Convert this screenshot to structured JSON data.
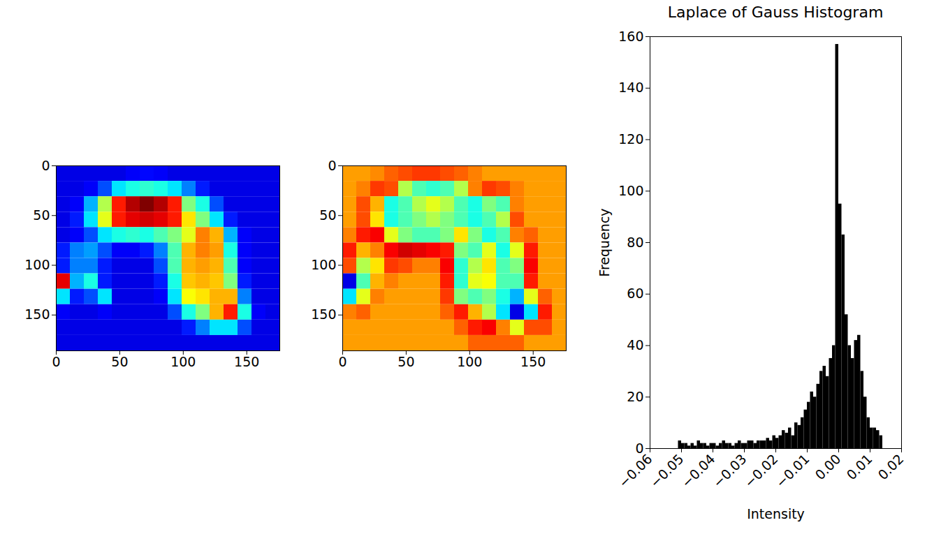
{
  "chart_data": [
    {
      "type": "heatmap",
      "color": "jet",
      "color_domain": [
        0,
        1
      ],
      "x_edges": [
        0,
        11,
        22,
        33,
        44,
        55,
        66,
        77,
        88,
        99,
        110,
        121,
        132,
        143,
        154,
        165,
        176
      ],
      "y_edges": [
        0,
        15.5,
        31,
        46.5,
        62,
        77.5,
        93,
        108.5,
        124,
        139.5,
        155,
        170.5,
        186
      ],
      "cells": [
        [
          0.1,
          0.1,
          0.1,
          0.1,
          0.1,
          0.12,
          0.13,
          0.12,
          0.1,
          0.1,
          0.1,
          0.1,
          0.1,
          0.1,
          0.1,
          0.1
        ],
        [
          0.1,
          0.1,
          0.12,
          0.2,
          0.35,
          0.4,
          0.42,
          0.4,
          0.35,
          0.25,
          0.15,
          0.1,
          0.1,
          0.1,
          0.1,
          0.1
        ],
        [
          0.1,
          0.12,
          0.3,
          0.55,
          0.85,
          0.95,
          1.0,
          0.95,
          0.85,
          0.5,
          0.4,
          0.2,
          0.1,
          0.1,
          0.1,
          0.1
        ],
        [
          0.1,
          0.15,
          0.35,
          0.6,
          0.85,
          0.9,
          0.92,
          0.9,
          0.85,
          0.65,
          0.5,
          0.35,
          0.15,
          0.1,
          0.1,
          0.1
        ],
        [
          0.1,
          0.12,
          0.2,
          0.35,
          0.4,
          0.42,
          0.4,
          0.45,
          0.5,
          0.6,
          0.75,
          0.7,
          0.3,
          0.12,
          0.1,
          0.1
        ],
        [
          0.15,
          0.25,
          0.28,
          0.2,
          0.12,
          0.12,
          0.15,
          0.25,
          0.45,
          0.7,
          0.75,
          0.72,
          0.4,
          0.12,
          0.1,
          0.1
        ],
        [
          0.15,
          0.25,
          0.25,
          0.15,
          0.1,
          0.1,
          0.1,
          0.2,
          0.45,
          0.7,
          0.72,
          0.7,
          0.45,
          0.12,
          0.1,
          0.1
        ],
        [
          0.9,
          0.3,
          0.4,
          0.15,
          0.1,
          0.1,
          0.1,
          0.15,
          0.4,
          0.68,
          0.7,
          0.68,
          0.5,
          0.15,
          0.1,
          0.1
        ],
        [
          0.35,
          0.15,
          0.2,
          0.35,
          0.1,
          0.1,
          0.1,
          0.12,
          0.35,
          0.62,
          0.65,
          0.7,
          0.7,
          0.25,
          0.1,
          0.1
        ],
        [
          0.12,
          0.1,
          0.1,
          0.12,
          0.1,
          0.1,
          0.1,
          0.1,
          0.2,
          0.4,
          0.5,
          0.7,
          0.85,
          0.4,
          0.12,
          0.1
        ],
        [
          0.1,
          0.1,
          0.1,
          0.1,
          0.1,
          0.1,
          0.1,
          0.1,
          0.1,
          0.15,
          0.25,
          0.35,
          0.35,
          0.2,
          0.1,
          0.1
        ],
        [
          0.1,
          0.1,
          0.1,
          0.1,
          0.1,
          0.1,
          0.1,
          0.1,
          0.1,
          0.1,
          0.1,
          0.1,
          0.1,
          0.1,
          0.1,
          0.1
        ]
      ],
      "xlim": [
        0,
        176
      ],
      "ylim": [
        0,
        186
      ],
      "xticks": [
        0,
        50,
        100,
        150
      ],
      "yticks": [
        0,
        50,
        100,
        150
      ]
    },
    {
      "type": "heatmap",
      "color": "jet",
      "color_domain": [
        0,
        1
      ],
      "x_edges": [
        0,
        11,
        22,
        33,
        44,
        55,
        66,
        77,
        88,
        99,
        110,
        121,
        132,
        143,
        154,
        165,
        176
      ],
      "y_edges": [
        0,
        15.5,
        31,
        46.5,
        62,
        77.5,
        93,
        108.5,
        124,
        139.5,
        155,
        170.5,
        186
      ],
      "cells": [
        [
          0.72,
          0.72,
          0.74,
          0.78,
          0.8,
          0.82,
          0.82,
          0.8,
          0.78,
          0.75,
          0.72,
          0.72,
          0.72,
          0.72,
          0.72,
          0.72
        ],
        [
          0.72,
          0.75,
          0.82,
          0.8,
          0.55,
          0.45,
          0.42,
          0.45,
          0.55,
          0.75,
          0.82,
          0.8,
          0.75,
          0.72,
          0.72,
          0.72
        ],
        [
          0.72,
          0.8,
          0.7,
          0.4,
          0.45,
          0.55,
          0.6,
          0.55,
          0.45,
          0.4,
          0.5,
          0.45,
          0.75,
          0.72,
          0.72,
          0.72
        ],
        [
          0.72,
          0.8,
          0.65,
          0.4,
          0.45,
          0.5,
          0.55,
          0.5,
          0.45,
          0.4,
          0.45,
          0.55,
          0.8,
          0.72,
          0.72,
          0.72
        ],
        [
          0.75,
          0.85,
          0.88,
          0.6,
          0.5,
          0.45,
          0.45,
          0.5,
          0.65,
          0.5,
          0.4,
          0.45,
          0.75,
          0.78,
          0.72,
          0.72
        ],
        [
          0.85,
          0.7,
          0.75,
          0.88,
          0.92,
          0.9,
          0.88,
          0.85,
          0.5,
          0.45,
          0.6,
          0.4,
          0.6,
          0.85,
          0.72,
          0.72
        ],
        [
          0.8,
          0.55,
          0.65,
          0.82,
          0.8,
          0.75,
          0.75,
          0.88,
          0.42,
          0.55,
          0.65,
          0.45,
          0.5,
          0.88,
          0.72,
          0.72
        ],
        [
          0.1,
          0.45,
          0.7,
          0.75,
          0.72,
          0.72,
          0.72,
          0.85,
          0.42,
          0.6,
          0.62,
          0.45,
          0.45,
          0.85,
          0.72,
          0.72
        ],
        [
          0.35,
          0.6,
          0.75,
          0.72,
          0.72,
          0.72,
          0.72,
          0.82,
          0.5,
          0.45,
          0.5,
          0.4,
          0.3,
          0.6,
          0.78,
          0.72
        ],
        [
          0.75,
          0.78,
          0.72,
          0.72,
          0.72,
          0.72,
          0.72,
          0.78,
          0.85,
          0.7,
          0.55,
          0.35,
          0.1,
          0.35,
          0.85,
          0.72
        ],
        [
          0.72,
          0.72,
          0.72,
          0.72,
          0.72,
          0.72,
          0.72,
          0.72,
          0.78,
          0.85,
          0.88,
          0.75,
          0.6,
          0.8,
          0.8,
          0.72
        ],
        [
          0.72,
          0.72,
          0.72,
          0.72,
          0.72,
          0.72,
          0.72,
          0.72,
          0.72,
          0.78,
          0.78,
          0.78,
          0.78,
          0.72,
          0.72,
          0.72
        ]
      ],
      "xlim": [
        0,
        176
      ],
      "ylim": [
        0,
        186
      ],
      "xticks": [
        0,
        50,
        100,
        150
      ],
      "yticks": [
        0,
        50,
        100,
        150
      ]
    },
    {
      "type": "histogram",
      "title": "Laplace of Gauss Histogram",
      "x_label": "Intensity",
      "y_label": "Frequency",
      "color": "#000000",
      "bins": [
        -0.06,
        -0.059,
        -0.058,
        -0.057,
        -0.056,
        -0.055,
        -0.054,
        -0.053,
        -0.052,
        -0.051,
        -0.05,
        -0.049,
        -0.048,
        -0.047,
        -0.046,
        -0.045,
        -0.044,
        -0.043,
        -0.042,
        -0.041,
        -0.04,
        -0.039,
        -0.038,
        -0.037,
        -0.036,
        -0.035,
        -0.034,
        -0.033,
        -0.032,
        -0.031,
        -0.03,
        -0.029,
        -0.028,
        -0.027,
        -0.026,
        -0.025,
        -0.024,
        -0.023,
        -0.022,
        -0.021,
        -0.02,
        -0.019,
        -0.018,
        -0.017,
        -0.016,
        -0.015,
        -0.014,
        -0.013,
        -0.012,
        -0.011,
        -0.01,
        -0.009,
        -0.008,
        -0.007,
        -0.006,
        -0.005,
        -0.004,
        -0.003,
        -0.002,
        -0.001,
        0,
        0.001,
        0.002,
        0.003,
        0.004,
        0.005,
        0.006,
        0.007,
        0.008,
        0.009,
        0.01,
        0.011,
        0.012,
        0.013,
        0.014,
        0.015,
        0.016,
        0.017,
        0.018,
        0.019,
        0.02
      ],
      "counts": [
        0,
        0,
        0,
        0,
        0,
        0,
        0,
        0,
        0,
        3,
        2,
        2,
        1,
        2,
        1,
        3,
        2,
        2,
        1,
        2,
        2,
        1,
        2,
        3,
        2,
        2,
        1,
        2,
        3,
        2,
        2,
        3,
        3,
        2,
        3,
        3,
        3,
        4,
        3,
        5,
        4,
        5,
        7,
        6,
        8,
        5,
        10,
        9,
        12,
        15,
        18,
        22,
        20,
        25,
        30,
        32,
        28,
        35,
        40,
        157,
        95,
        83,
        52,
        40,
        35,
        42,
        44,
        30,
        20,
        12,
        8,
        8,
        7,
        5,
        0,
        0,
        0,
        0,
        0,
        0
      ],
      "xlim": [
        -0.06,
        0.02
      ],
      "ylim": [
        0,
        160
      ],
      "xticks": [
        {
          "value": -0.06,
          "label": "−0.06"
        },
        {
          "value": -0.05,
          "label": "−0.05"
        },
        {
          "value": -0.04,
          "label": "−0.04"
        },
        {
          "value": -0.03,
          "label": "−0.03"
        },
        {
          "value": -0.02,
          "label": "−0.02"
        },
        {
          "value": -0.01,
          "label": "−0.01"
        },
        {
          "value": 0,
          "label": "0.00"
        },
        0.01,
        0.02
      ],
      "yticks": [
        0,
        20,
        40,
        60,
        80,
        100,
        120,
        140,
        160
      ]
    }
  ]
}
